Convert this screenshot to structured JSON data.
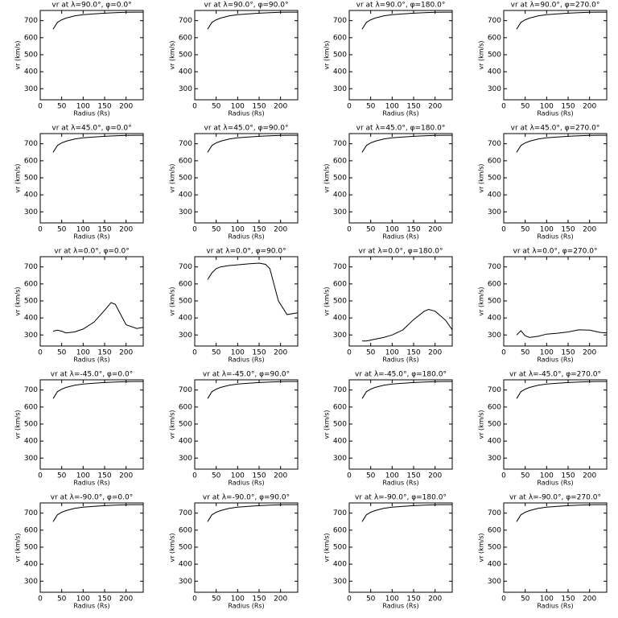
{
  "chart_data": [
    {
      "type": "line",
      "title": "vr at λ=90.0°, φ=0.0°",
      "xlabel": "Radius (Rs)",
      "ylabel": "vr (km/s)",
      "color": "#000000",
      "x": [
        30,
        40,
        50,
        60,
        80,
        100,
        125,
        150,
        175,
        200,
        225,
        240
      ],
      "values": [
        650,
        690,
        705,
        715,
        728,
        735,
        740,
        744,
        747,
        749,
        750,
        750
      ],
      "xlim": [
        0,
        240
      ],
      "ylim": [
        235,
        760
      ],
      "xticks": [
        0,
        50,
        100,
        150,
        200
      ],
      "yticks": [
        300,
        400,
        500,
        600,
        700
      ]
    },
    {
      "type": "line",
      "title": "vr at λ=90.0°, φ=90.0°",
      "xlabel": "Radius (Rs)",
      "ylabel": "vr (km/s)",
      "color": "#000000",
      "x": [
        30,
        40,
        50,
        60,
        80,
        100,
        125,
        150,
        175,
        200,
        225,
        240
      ],
      "values": [
        650,
        690,
        705,
        715,
        728,
        735,
        740,
        744,
        747,
        749,
        750,
        750
      ],
      "xlim": [
        0,
        240
      ],
      "ylim": [
        235,
        760
      ],
      "xticks": [
        0,
        50,
        100,
        150,
        200
      ],
      "yticks": [
        300,
        400,
        500,
        600,
        700
      ]
    },
    {
      "type": "line",
      "title": "vr at λ=90.0°, φ=180.0°",
      "xlabel": "Radius (Rs)",
      "ylabel": "vr (km/s)",
      "color": "#000000",
      "x": [
        30,
        40,
        50,
        60,
        80,
        100,
        125,
        150,
        175,
        200,
        225,
        240
      ],
      "values": [
        650,
        690,
        705,
        715,
        728,
        735,
        740,
        744,
        747,
        749,
        750,
        750
      ],
      "xlim": [
        0,
        240
      ],
      "ylim": [
        235,
        760
      ],
      "xticks": [
        0,
        50,
        100,
        150,
        200
      ],
      "yticks": [
        300,
        400,
        500,
        600,
        700
      ]
    },
    {
      "type": "line",
      "title": "vr at λ=90.0°, φ=270.0°",
      "xlabel": "Radius (Rs)",
      "ylabel": "vr (km/s)",
      "color": "#000000",
      "x": [
        30,
        40,
        50,
        60,
        80,
        100,
        125,
        150,
        175,
        200,
        225,
        240
      ],
      "values": [
        650,
        690,
        705,
        715,
        728,
        735,
        740,
        744,
        747,
        749,
        750,
        750
      ],
      "xlim": [
        0,
        240
      ],
      "ylim": [
        235,
        760
      ],
      "xticks": [
        0,
        50,
        100,
        150,
        200
      ],
      "yticks": [
        300,
        400,
        500,
        600,
        700
      ]
    },
    {
      "type": "line",
      "title": "vr at λ=45.0°, φ=0.0°",
      "xlabel": "Radius (Rs)",
      "ylabel": "vr (km/s)",
      "color": "#000000",
      "x": [
        30,
        40,
        50,
        60,
        80,
        100,
        125,
        150,
        175,
        200,
        225,
        240
      ],
      "values": [
        650,
        690,
        705,
        715,
        728,
        735,
        740,
        744,
        747,
        749,
        750,
        750
      ],
      "xlim": [
        0,
        240
      ],
      "ylim": [
        235,
        760
      ],
      "xticks": [
        0,
        50,
        100,
        150,
        200
      ],
      "yticks": [
        300,
        400,
        500,
        600,
        700
      ]
    },
    {
      "type": "line",
      "title": "vr at λ=45.0°, φ=90.0°",
      "xlabel": "Radius (Rs)",
      "ylabel": "vr (km/s)",
      "color": "#000000",
      "x": [
        30,
        40,
        50,
        60,
        80,
        100,
        125,
        150,
        175,
        200,
        225,
        240
      ],
      "values": [
        650,
        690,
        705,
        715,
        728,
        735,
        740,
        744,
        747,
        749,
        750,
        750
      ],
      "xlim": [
        0,
        240
      ],
      "ylim": [
        235,
        760
      ],
      "xticks": [
        0,
        50,
        100,
        150,
        200
      ],
      "yticks": [
        300,
        400,
        500,
        600,
        700
      ]
    },
    {
      "type": "line",
      "title": "vr at λ=45.0°, φ=180.0°",
      "xlabel": "Radius (Rs)",
      "ylabel": "vr (km/s)",
      "color": "#000000",
      "x": [
        30,
        40,
        50,
        60,
        80,
        100,
        125,
        150,
        175,
        200,
        225,
        240
      ],
      "values": [
        650,
        690,
        705,
        715,
        728,
        735,
        740,
        744,
        747,
        749,
        750,
        750
      ],
      "xlim": [
        0,
        240
      ],
      "ylim": [
        235,
        760
      ],
      "xticks": [
        0,
        50,
        100,
        150,
        200
      ],
      "yticks": [
        300,
        400,
        500,
        600,
        700
      ]
    },
    {
      "type": "line",
      "title": "vr at λ=45.0°, φ=270.0°",
      "xlabel": "Radius (Rs)",
      "ylabel": "vr (km/s)",
      "color": "#000000",
      "x": [
        30,
        40,
        50,
        60,
        80,
        100,
        125,
        150,
        175,
        200,
        225,
        240
      ],
      "values": [
        650,
        690,
        705,
        715,
        728,
        735,
        740,
        744,
        747,
        749,
        750,
        750
      ],
      "xlim": [
        0,
        240
      ],
      "ylim": [
        235,
        760
      ],
      "xticks": [
        0,
        50,
        100,
        150,
        200
      ],
      "yticks": [
        300,
        400,
        500,
        600,
        700
      ]
    },
    {
      "type": "line",
      "title": "vr at λ=0.0°, φ=0.0°",
      "xlabel": "Radius (Rs)",
      "ylabel": "vr (km/s)",
      "color": "#000000",
      "x": [
        30,
        40,
        50,
        60,
        80,
        100,
        125,
        150,
        165,
        175,
        200,
        225,
        240
      ],
      "values": [
        322,
        328,
        322,
        312,
        318,
        335,
        375,
        445,
        490,
        480,
        360,
        338,
        345
      ],
      "xlim": [
        0,
        240
      ],
      "ylim": [
        235,
        760
      ],
      "xticks": [
        0,
        50,
        100,
        150,
        200
      ],
      "yticks": [
        300,
        400,
        500,
        600,
        700
      ]
    },
    {
      "type": "line",
      "title": "vr at λ=0.0°, φ=90.0°",
      "xlabel": "Radius (Rs)",
      "ylabel": "vr (km/s)",
      "color": "#000000",
      "x": [
        30,
        40,
        50,
        60,
        80,
        100,
        125,
        150,
        165,
        175,
        195,
        215,
        240
      ],
      "values": [
        625,
        665,
        690,
        700,
        708,
        712,
        718,
        722,
        715,
        690,
        500,
        420,
        430
      ],
      "xlim": [
        0,
        240
      ],
      "ylim": [
        235,
        760
      ],
      "xticks": [
        0,
        50,
        100,
        150,
        200
      ],
      "yticks": [
        300,
        400,
        500,
        600,
        700
      ]
    },
    {
      "type": "line",
      "title": "vr at λ=0.0°, φ=180.0°",
      "xlabel": "Radius (Rs)",
      "ylabel": "vr (km/s)",
      "color": "#000000",
      "x": [
        30,
        40,
        50,
        60,
        80,
        100,
        125,
        150,
        175,
        185,
        200,
        225,
        240
      ],
      "values": [
        265,
        265,
        270,
        275,
        285,
        300,
        330,
        390,
        440,
        450,
        440,
        385,
        330
      ],
      "xlim": [
        0,
        240
      ],
      "ylim": [
        235,
        760
      ],
      "xticks": [
        0,
        50,
        100,
        150,
        200
      ],
      "yticks": [
        300,
        400,
        500,
        600,
        700
      ]
    },
    {
      "type": "line",
      "title": "vr at λ=0.0°, φ=270.0°",
      "xlabel": "Radius (Rs)",
      "ylabel": "vr (km/s)",
      "color": "#000000",
      "x": [
        30,
        40,
        50,
        60,
        80,
        100,
        125,
        150,
        175,
        200,
        225,
        240
      ],
      "values": [
        300,
        325,
        295,
        285,
        292,
        305,
        310,
        318,
        330,
        328,
        315,
        312
      ],
      "xlim": [
        0,
        240
      ],
      "ylim": [
        235,
        760
      ],
      "xticks": [
        0,
        50,
        100,
        150,
        200
      ],
      "yticks": [
        300,
        400,
        500,
        600,
        700
      ]
    },
    {
      "type": "line",
      "title": "vr at λ=-45.0°, φ=0.0°",
      "xlabel": "Radius (Rs)",
      "ylabel": "vr (km/s)",
      "color": "#000000",
      "x": [
        30,
        40,
        50,
        60,
        80,
        100,
        125,
        150,
        175,
        200,
        225,
        240
      ],
      "values": [
        650,
        690,
        705,
        715,
        728,
        735,
        740,
        744,
        747,
        749,
        750,
        750
      ],
      "xlim": [
        0,
        240
      ],
      "ylim": [
        235,
        760
      ],
      "xticks": [
        0,
        50,
        100,
        150,
        200
      ],
      "yticks": [
        300,
        400,
        500,
        600,
        700
      ]
    },
    {
      "type": "line",
      "title": "vr at λ=-45.0°, φ=90.0°",
      "xlabel": "Radius (Rs)",
      "ylabel": "vr (km/s)",
      "color": "#000000",
      "x": [
        30,
        40,
        50,
        60,
        80,
        100,
        125,
        150,
        175,
        200,
        225,
        240
      ],
      "values": [
        650,
        690,
        705,
        715,
        728,
        735,
        740,
        744,
        747,
        749,
        750,
        750
      ],
      "xlim": [
        0,
        240
      ],
      "ylim": [
        235,
        760
      ],
      "xticks": [
        0,
        50,
        100,
        150,
        200
      ],
      "yticks": [
        300,
        400,
        500,
        600,
        700
      ]
    },
    {
      "type": "line",
      "title": "vr at λ=-45.0°, φ=180.0°",
      "xlabel": "Radius (Rs)",
      "ylabel": "vr (km/s)",
      "color": "#000000",
      "x": [
        30,
        40,
        50,
        60,
        80,
        100,
        125,
        150,
        175,
        200,
        225,
        240
      ],
      "values": [
        650,
        690,
        705,
        715,
        728,
        735,
        740,
        744,
        747,
        749,
        750,
        750
      ],
      "xlim": [
        0,
        240
      ],
      "ylim": [
        235,
        760
      ],
      "xticks": [
        0,
        50,
        100,
        150,
        200
      ],
      "yticks": [
        300,
        400,
        500,
        600,
        700
      ]
    },
    {
      "type": "line",
      "title": "vr at λ=-45.0°, φ=270.0°",
      "xlabel": "Radius (Rs)",
      "ylabel": "vr (km/s)",
      "color": "#000000",
      "x": [
        30,
        40,
        50,
        60,
        80,
        100,
        125,
        150,
        175,
        200,
        225,
        240
      ],
      "values": [
        650,
        690,
        705,
        715,
        728,
        735,
        740,
        744,
        747,
        749,
        750,
        750
      ],
      "xlim": [
        0,
        240
      ],
      "ylim": [
        235,
        760
      ],
      "xticks": [
        0,
        50,
        100,
        150,
        200
      ],
      "yticks": [
        300,
        400,
        500,
        600,
        700
      ]
    },
    {
      "type": "line",
      "title": "vr at λ=-90.0°, φ=0.0°",
      "xlabel": "Radius (Rs)",
      "ylabel": "vr (km/s)",
      "color": "#000000",
      "x": [
        30,
        40,
        50,
        60,
        80,
        100,
        125,
        150,
        175,
        200,
        225,
        240
      ],
      "values": [
        650,
        690,
        705,
        715,
        728,
        735,
        740,
        744,
        747,
        749,
        750,
        750
      ],
      "xlim": [
        0,
        240
      ],
      "ylim": [
        235,
        760
      ],
      "xticks": [
        0,
        50,
        100,
        150,
        200
      ],
      "yticks": [
        300,
        400,
        500,
        600,
        700
      ]
    },
    {
      "type": "line",
      "title": "vr at λ=-90.0°, φ=90.0°",
      "xlabel": "Radius (Rs)",
      "ylabel": "vr (km/s)",
      "color": "#000000",
      "x": [
        30,
        40,
        50,
        60,
        80,
        100,
        125,
        150,
        175,
        200,
        225,
        240
      ],
      "values": [
        650,
        690,
        705,
        715,
        728,
        735,
        740,
        744,
        747,
        749,
        750,
        750
      ],
      "xlim": [
        0,
        240
      ],
      "ylim": [
        235,
        760
      ],
      "xticks": [
        0,
        50,
        100,
        150,
        200
      ],
      "yticks": [
        300,
        400,
        500,
        600,
        700
      ]
    },
    {
      "type": "line",
      "title": "vr at λ=-90.0°, φ=180.0°",
      "xlabel": "Radius (Rs)",
      "ylabel": "vr (km/s)",
      "color": "#000000",
      "x": [
        30,
        40,
        50,
        60,
        80,
        100,
        125,
        150,
        175,
        200,
        225,
        240
      ],
      "values": [
        650,
        690,
        705,
        715,
        728,
        735,
        740,
        744,
        747,
        749,
        750,
        750
      ],
      "xlim": [
        0,
        240
      ],
      "ylim": [
        235,
        760
      ],
      "xticks": [
        0,
        50,
        100,
        150,
        200
      ],
      "yticks": [
        300,
        400,
        500,
        600,
        700
      ]
    },
    {
      "type": "line",
      "title": "vr at λ=-90.0°, φ=270.0°",
      "xlabel": "Radius (Rs)",
      "ylabel": "vr (km/s)",
      "color": "#000000",
      "x": [
        30,
        40,
        50,
        60,
        80,
        100,
        125,
        150,
        175,
        200,
        225,
        240
      ],
      "values": [
        650,
        690,
        705,
        715,
        728,
        735,
        740,
        744,
        747,
        749,
        750,
        750
      ],
      "xlim": [
        0,
        240
      ],
      "ylim": [
        235,
        760
      ],
      "xticks": [
        0,
        50,
        100,
        150,
        200
      ],
      "yticks": [
        300,
        400,
        500,
        600,
        700
      ]
    }
  ]
}
